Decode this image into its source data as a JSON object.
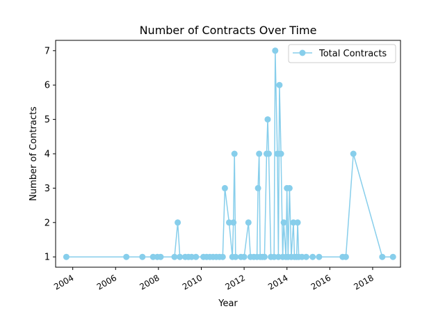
{
  "chart_data": {
    "type": "line",
    "title": "Number of Contracts Over Time",
    "xlabel": "Year",
    "ylabel": "Number of Contracts",
    "xlim": [
      2003.2,
      2019.3
    ],
    "ylim": [
      0.7,
      7.3
    ],
    "xticks": [
      2004,
      2006,
      2008,
      2010,
      2012,
      2014,
      2016,
      2018
    ],
    "yticks": [
      1,
      2,
      3,
      4,
      5,
      6,
      7
    ],
    "grid": false,
    "legend_position": "top-right",
    "color": "#87CEEB",
    "series": [
      {
        "name": "Total Contracts",
        "points": [
          [
            2003.7,
            1
          ],
          [
            2006.5,
            1
          ],
          [
            2007.25,
            1
          ],
          [
            2007.75,
            1
          ],
          [
            2007.95,
            1
          ],
          [
            2008.1,
            1
          ],
          [
            2008.75,
            1
          ],
          [
            2008.9,
            2
          ],
          [
            2009.0,
            1
          ],
          [
            2009.25,
            1
          ],
          [
            2009.4,
            1
          ],
          [
            2009.55,
            1
          ],
          [
            2009.75,
            1
          ],
          [
            2010.1,
            1
          ],
          [
            2010.25,
            1
          ],
          [
            2010.4,
            1
          ],
          [
            2010.55,
            1
          ],
          [
            2010.7,
            1
          ],
          [
            2010.85,
            1
          ],
          [
            2011.0,
            1
          ],
          [
            2011.1,
            3
          ],
          [
            2011.3,
            2
          ],
          [
            2011.45,
            1
          ],
          [
            2011.5,
            2
          ],
          [
            2011.55,
            4
          ],
          [
            2011.6,
            1
          ],
          [
            2011.85,
            1
          ],
          [
            2012.0,
            1
          ],
          [
            2012.2,
            2
          ],
          [
            2012.3,
            1
          ],
          [
            2012.45,
            1
          ],
          [
            2012.6,
            1
          ],
          [
            2012.65,
            3
          ],
          [
            2012.7,
            4
          ],
          [
            2012.75,
            1
          ],
          [
            2012.85,
            1
          ],
          [
            2012.95,
            1
          ],
          [
            2013.05,
            4
          ],
          [
            2013.1,
            5
          ],
          [
            2013.15,
            4
          ],
          [
            2013.25,
            1
          ],
          [
            2013.4,
            1
          ],
          [
            2013.45,
            7
          ],
          [
            2013.55,
            4
          ],
          [
            2013.6,
            1
          ],
          [
            2013.65,
            6
          ],
          [
            2013.72,
            4
          ],
          [
            2013.8,
            1
          ],
          [
            2013.85,
            2
          ],
          [
            2013.95,
            1
          ],
          [
            2014.0,
            3
          ],
          [
            2014.05,
            1
          ],
          [
            2014.12,
            3
          ],
          [
            2014.2,
            1
          ],
          [
            2014.3,
            2
          ],
          [
            2014.35,
            1
          ],
          [
            2014.45,
            1
          ],
          [
            2014.5,
            2
          ],
          [
            2014.55,
            1
          ],
          [
            2014.7,
            1
          ],
          [
            2014.9,
            1
          ],
          [
            2015.2,
            1
          ],
          [
            2015.5,
            1
          ],
          [
            2016.6,
            1
          ],
          [
            2016.75,
            1
          ],
          [
            2017.1,
            4
          ],
          [
            2018.45,
            1
          ],
          [
            2018.95,
            1
          ]
        ]
      }
    ]
  }
}
